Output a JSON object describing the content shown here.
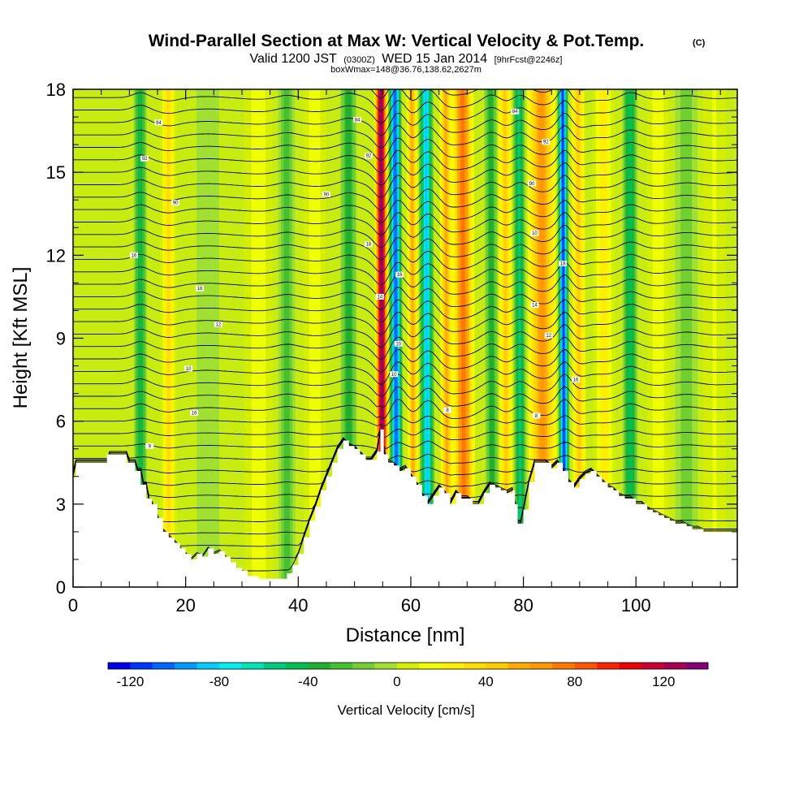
{
  "chart_data": {
    "type": "heatmap",
    "title": "Wind-Parallel Section at Max W: Vertical Velocity & Pot.Temp.",
    "title_mark": "(C)",
    "subtitle_parts": [
      "Valid 1200 JST",
      "(0300Z)",
      "WED 15 Jan 2014",
      "[9hrFcst@2246z]"
    ],
    "subtitle2": "boxWmax=148@36.76,138.62,2627m",
    "xlabel": "Distance [nm]",
    "ylabel": "Height [Kft MSL]",
    "xlim": [
      0,
      118
    ],
    "ylim": [
      0,
      18
    ],
    "x_ticks": [
      "0",
      "20",
      "40",
      "60",
      "80",
      "100"
    ],
    "y_ticks": [
      "0",
      "3",
      "6",
      "9",
      "12",
      "15",
      "18"
    ],
    "colorbar": {
      "label": "Vertical Velocity [cm/s]",
      "ticks": [
        "-120",
        "-80",
        "-40",
        "0",
        "40",
        "80",
        "120"
      ],
      "levels": [
        -130,
        -120,
        -110,
        -100,
        -90,
        -80,
        -70,
        -60,
        -50,
        -40,
        -30,
        -20,
        -10,
        0,
        10,
        20,
        30,
        40,
        50,
        60,
        70,
        80,
        90,
        100,
        110,
        120,
        130,
        140
      ],
      "colors": [
        "#0000ee",
        "#0033ff",
        "#0066ff",
        "#0099ff",
        "#00ccff",
        "#00eeee",
        "#00e6b4",
        "#00cc80",
        "#00c050",
        "#20b030",
        "#44c030",
        "#70d030",
        "#a0e030",
        "#d4f000",
        "#f0ff00",
        "#ffee00",
        "#ffdd00",
        "#ffcc00",
        "#ffaa00",
        "#ff9900",
        "#ff7700",
        "#ff5500",
        "#ff2200",
        "#ee0000",
        "#cc0033",
        "#aa0055",
        "#880077"
      ]
    },
    "terrain": [
      [
        0,
        4.0
      ],
      [
        0.5,
        4.5
      ],
      [
        6,
        4.5
      ],
      [
        6,
        4.8
      ],
      [
        9.5,
        4.8
      ],
      [
        9.5,
        4.5
      ],
      [
        11,
        4.5
      ],
      [
        11,
        4.2
      ],
      [
        12,
        4.2
      ],
      [
        12,
        3.7
      ],
      [
        13,
        3.7
      ],
      [
        13,
        3.2
      ],
      [
        14,
        3.0
      ],
      [
        15,
        2.5
      ],
      [
        16,
        2.0
      ],
      [
        17,
        1.8
      ],
      [
        18,
        1.6
      ],
      [
        19,
        1.4
      ],
      [
        20,
        1.2
      ],
      [
        21,
        1.0
      ],
      [
        22,
        1.2
      ],
      [
        23,
        1.1
      ],
      [
        24,
        1.4
      ],
      [
        25,
        1.2
      ],
      [
        26,
        1.3
      ],
      [
        27,
        1.1
      ],
      [
        28,
        0.9
      ],
      [
        29,
        0.7
      ],
      [
        30,
        0.6
      ],
      [
        31,
        0.4
      ],
      [
        33,
        0.3
      ],
      [
        36,
        0.3
      ],
      [
        38,
        0.5
      ],
      [
        39,
        0.8
      ],
      [
        40,
        1.2
      ],
      [
        41,
        1.8
      ],
      [
        42,
        2.4
      ],
      [
        43,
        2.9
      ],
      [
        44,
        3.5
      ],
      [
        45,
        4.0
      ],
      [
        46,
        4.5
      ],
      [
        47,
        5.0
      ],
      [
        48,
        5.3
      ],
      [
        49,
        5.1
      ],
      [
        50,
        5.0
      ],
      [
        51,
        4.8
      ],
      [
        52,
        4.6
      ],
      [
        53,
        4.6
      ],
      [
        54,
        4.9
      ],
      [
        54.6,
        5.7
      ],
      [
        55.2,
        4.8
      ],
      [
        56,
        4.5
      ],
      [
        57,
        4.4
      ],
      [
        58,
        4.2
      ],
      [
        59,
        4.3
      ],
      [
        60,
        4.0
      ],
      [
        61,
        3.7
      ],
      [
        62,
        3.3
      ],
      [
        63,
        3.0
      ],
      [
        64,
        3.3
      ],
      [
        65,
        3.6
      ],
      [
        66,
        3.4
      ],
      [
        67,
        3.0
      ],
      [
        68,
        3.4
      ],
      [
        69,
        3.2
      ],
      [
        70,
        3.2
      ],
      [
        71,
        3.0
      ],
      [
        72,
        3.0
      ],
      [
        73,
        3.4
      ],
      [
        74,
        3.7
      ],
      [
        75,
        3.6
      ],
      [
        76,
        3.5
      ],
      [
        77,
        3.4
      ],
      [
        78,
        3.5
      ],
      [
        78.5,
        3.0
      ],
      [
        79,
        2.3
      ],
      [
        79.5,
        2.3
      ],
      [
        80,
        2.8
      ],
      [
        81,
        3.8
      ],
      [
        82,
        4.5
      ],
      [
        84,
        4.5
      ],
      [
        85,
        4.3
      ],
      [
        86,
        4.5
      ],
      [
        87,
        4.2
      ],
      [
        88,
        3.8
      ],
      [
        89,
        3.6
      ],
      [
        90,
        3.9
      ],
      [
        91,
        4.1
      ],
      [
        92,
        4.2
      ],
      [
        93,
        4.0
      ],
      [
        94,
        3.8
      ],
      [
        95,
        3.6
      ],
      [
        96,
        3.5
      ],
      [
        97,
        3.3
      ],
      [
        98,
        3.2
      ],
      [
        99,
        3.2
      ],
      [
        100,
        3.0
      ],
      [
        101,
        3.0
      ],
      [
        102,
        2.8
      ],
      [
        103,
        2.7
      ],
      [
        104,
        2.6
      ],
      [
        105,
        2.5
      ],
      [
        106,
        2.4
      ],
      [
        107,
        2.3
      ],
      [
        108,
        2.3
      ],
      [
        109,
        2.2
      ],
      [
        110,
        2.1
      ],
      [
        111,
        2.1
      ],
      [
        112,
        2.0
      ],
      [
        113,
        2.0
      ],
      [
        118,
        2.0
      ]
    ],
    "w_bands": [
      {
        "x": 12.0,
        "w": -45,
        "width": 1.2
      },
      {
        "x": 17.0,
        "w": 30,
        "width": 1.5
      },
      {
        "x": 24.0,
        "w": -10,
        "width": 2.0
      },
      {
        "x": 33.0,
        "w": 15,
        "width": 2.5
      },
      {
        "x": 38.0,
        "w": -25,
        "width": 1.5
      },
      {
        "x": 43.0,
        "w": 15,
        "width": 2.0
      },
      {
        "x": 49.0,
        "w": -40,
        "width": 1.5
      },
      {
        "x": 55.0,
        "w": 135,
        "width": 1.2
      },
      {
        "x": 57.5,
        "w": -110,
        "width": 1.2
      },
      {
        "x": 60.5,
        "w": 55,
        "width": 1.1
      },
      {
        "x": 63.0,
        "w": -85,
        "width": 1.3
      },
      {
        "x": 66.5,
        "w": 50,
        "width": 1.3
      },
      {
        "x": 69.5,
        "w": 75,
        "width": 2.0
      },
      {
        "x": 74.5,
        "w": -40,
        "width": 1.2
      },
      {
        "x": 77.0,
        "w": 40,
        "width": 1.3
      },
      {
        "x": 79.5,
        "w": -55,
        "width": 1.2
      },
      {
        "x": 83.5,
        "w": 65,
        "width": 2.5
      },
      {
        "x": 87.3,
        "w": -120,
        "width": 1.0
      },
      {
        "x": 90.0,
        "w": 40,
        "width": 1.3
      },
      {
        "x": 94.5,
        "w": 25,
        "width": 2.0
      },
      {
        "x": 99.0,
        "w": -50,
        "width": 1.4
      },
      {
        "x": 104.0,
        "w": 15,
        "width": 2.0
      },
      {
        "x": 109.0,
        "w": -20,
        "width": 2.0
      },
      {
        "x": 114.0,
        "w": 10,
        "width": 2.0
      }
    ],
    "contour_labels": [
      {
        "x": 15.2,
        "y": 16.8,
        "text": "94"
      },
      {
        "x": 50.5,
        "y": 16.9,
        "text": "84"
      },
      {
        "x": 78.5,
        "y": 17.2,
        "text": "84"
      },
      {
        "x": 12.7,
        "y": 15.5,
        "text": "92"
      },
      {
        "x": 52.5,
        "y": 15.6,
        "text": "92"
      },
      {
        "x": 84.0,
        "y": 16.1,
        "text": "92"
      },
      {
        "x": 18.2,
        "y": 13.9,
        "text": "90"
      },
      {
        "x": 45.0,
        "y": 14.2,
        "text": "90"
      },
      {
        "x": 81.5,
        "y": 14.6,
        "text": "90"
      },
      {
        "x": 10.8,
        "y": 12.0,
        "text": "16"
      },
      {
        "x": 52.5,
        "y": 12.4,
        "text": "18"
      },
      {
        "x": 82.0,
        "y": 12.8,
        "text": "10"
      },
      {
        "x": 22.5,
        "y": 10.8,
        "text": "16"
      },
      {
        "x": 58.0,
        "y": 11.3,
        "text": "16"
      },
      {
        "x": 87.0,
        "y": 11.7,
        "text": "18"
      },
      {
        "x": 54.5,
        "y": 10.5,
        "text": "14"
      },
      {
        "x": 25.8,
        "y": 9.5,
        "text": "12"
      },
      {
        "x": 82.0,
        "y": 10.2,
        "text": "14"
      },
      {
        "x": 20.5,
        "y": 7.9,
        "text": "10"
      },
      {
        "x": 57.8,
        "y": 8.8,
        "text": "10"
      },
      {
        "x": 84.5,
        "y": 9.1,
        "text": "12"
      },
      {
        "x": 21.5,
        "y": 6.3,
        "text": "16"
      },
      {
        "x": 57.0,
        "y": 7.7,
        "text": "10"
      },
      {
        "x": 89.3,
        "y": 7.5,
        "text": "16"
      },
      {
        "x": 66.5,
        "y": 6.4,
        "text": "8"
      },
      {
        "x": 82.3,
        "y": 6.2,
        "text": "8"
      },
      {
        "x": 13.6,
        "y": 5.1,
        "text": "9"
      }
    ]
  }
}
